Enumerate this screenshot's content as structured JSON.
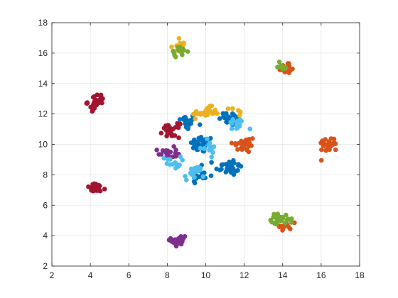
{
  "chart_data": {
    "type": "scatter",
    "title": "",
    "xlabel": "",
    "ylabel": "",
    "xlim": [
      2,
      18
    ],
    "ylim": [
      2,
      18
    ],
    "x_ticks": [
      "2",
      "4",
      "6",
      "8",
      "10",
      "12",
      "14",
      "16",
      "18"
    ],
    "y_ticks": [
      "2",
      "4",
      "6",
      "8",
      "10",
      "12",
      "14",
      "16",
      "18"
    ],
    "grid": true,
    "legend": "none",
    "series": [
      {
        "color": "#0072BD",
        "clusters": [
          {
            "center": [
              9.0,
              11.5
            ],
            "spread": [
              0.25,
              0.28
            ],
            "count": 22
          },
          {
            "center": [
              9.8,
              10.0
            ],
            "spread": [
              0.3,
              0.28
            ],
            "count": 28
          },
          {
            "center": [
              11.3,
              11.7
            ],
            "spread": [
              0.3,
              0.25
            ],
            "count": 20
          },
          {
            "center": [
              11.2,
              8.5
            ],
            "spread": [
              0.35,
              0.28
            ],
            "count": 35
          },
          {
            "center": [
              9.7,
              7.9
            ],
            "spread": [
              0.25,
              0.25
            ],
            "count": 12
          }
        ]
      },
      {
        "color": "#D95319",
        "clusters": [
          {
            "center": [
              12.0,
              10.0
            ],
            "spread": [
              0.3,
              0.28
            ],
            "count": 30
          },
          {
            "center": [
              14.2,
              15.0
            ],
            "spread": [
              0.22,
              0.22
            ],
            "count": 16
          },
          {
            "center": [
              16.4,
              10.0
            ],
            "spread": [
              0.25,
              0.25
            ],
            "count": 26
          },
          {
            "center": [
              14.2,
              4.6
            ],
            "spread": [
              0.25,
              0.2
            ],
            "count": 14
          }
        ]
      },
      {
        "color": "#EDB120",
        "clusters": [
          {
            "center": [
              10.0,
              12.1
            ],
            "spread": [
              0.35,
              0.18
            ],
            "count": 30
          },
          {
            "center": [
              8.6,
              16.6
            ],
            "spread": [
              0.15,
              0.22
            ],
            "count": 10
          },
          {
            "center": [
              11.6,
              12.2
            ],
            "spread": [
              0.25,
              0.15
            ],
            "count": 5
          }
        ]
      },
      {
        "color": "#7E2F8E",
        "clusters": [
          {
            "center": [
              8.0,
              9.4
            ],
            "spread": [
              0.25,
              0.2
            ],
            "count": 20
          },
          {
            "center": [
              8.6,
              3.7
            ],
            "spread": [
              0.2,
              0.25
            ],
            "count": 26
          }
        ]
      },
      {
        "color": "#77AC30",
        "clusters": [
          {
            "center": [
              8.6,
              16.1
            ],
            "spread": [
              0.22,
              0.15
            ],
            "count": 16
          },
          {
            "center": [
              14.0,
              15.2
            ],
            "spread": [
              0.2,
              0.15
            ],
            "count": 10
          },
          {
            "center": [
              14.0,
              5.1
            ],
            "spread": [
              0.3,
              0.18
            ],
            "count": 26
          }
        ]
      },
      {
        "color": "#4DBEEE",
        "clusters": [
          {
            "center": [
              8.2,
              8.8
            ],
            "spread": [
              0.25,
              0.2
            ],
            "count": 14
          },
          {
            "center": [
              9.4,
              8.1
            ],
            "spread": [
              0.25,
              0.25
            ],
            "count": 20
          },
          {
            "center": [
              10.1,
              9.8
            ],
            "spread": [
              0.22,
              0.22
            ],
            "count": 14
          },
          {
            "center": [
              11.6,
              11.3
            ],
            "spread": [
              0.25,
              0.25
            ],
            "count": 16
          }
        ]
      },
      {
        "color": "#A2142F",
        "clusters": [
          {
            "center": [
              4.3,
              12.8
            ],
            "spread": [
              0.22,
              0.25
            ],
            "count": 28
          },
          {
            "center": [
              8.2,
              10.9
            ],
            "spread": [
              0.22,
              0.22
            ],
            "count": 22
          },
          {
            "center": [
              4.3,
              7.1
            ],
            "spread": [
              0.25,
              0.15
            ],
            "count": 30
          }
        ]
      }
    ]
  }
}
